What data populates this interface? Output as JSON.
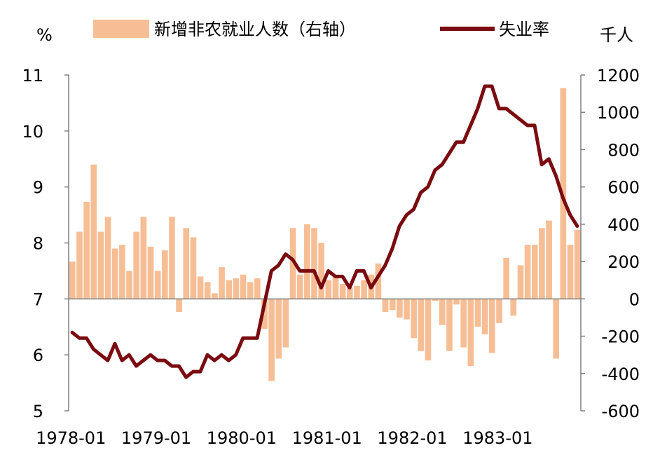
{
  "chart_data": {
    "type": "bar+line",
    "title": "",
    "left_unit": "%",
    "right_unit": "千人",
    "ylim_left": [
      5,
      11
    ],
    "ylim_right": [
      -600,
      1200
    ],
    "left_ticks": [
      5,
      6,
      7,
      8,
      9,
      10,
      11
    ],
    "right_ticks": [
      -600,
      -400,
      -200,
      0,
      200,
      400,
      600,
      800,
      1000,
      1200
    ],
    "x_tick_labels": [
      "1978-01",
      "1979-01",
      "1980-01",
      "1981-01",
      "1982-01",
      "1983-01"
    ],
    "x_tick_index": [
      0,
      12,
      24,
      36,
      48,
      60
    ],
    "months": 72,
    "colors": {
      "bar": "#F6BE95",
      "line": "#7A0B10",
      "axis": "#7F7F7F"
    },
    "legend": [
      {
        "name": "新增非农就业人数（右轴）",
        "kind": "bar"
      },
      {
        "name": "失业率",
        "kind": "line"
      }
    ],
    "series": [
      {
        "name": "新增非农就业人数（右轴）",
        "axis": "right",
        "values": [
          200,
          360,
          520,
          720,
          360,
          440,
          270,
          290,
          150,
          360,
          440,
          280,
          150,
          260,
          440,
          -70,
          380,
          330,
          120,
          90,
          30,
          170,
          100,
          110,
          130,
          90,
          110,
          -160,
          -440,
          -320,
          -260,
          380,
          130,
          400,
          380,
          300,
          100,
          120,
          80,
          60,
          70,
          100,
          130,
          190,
          -70,
          -60,
          -100,
          -110,
          -210,
          -280,
          -330,
          -10,
          -140,
          -280,
          -30,
          -260,
          -360,
          -150,
          -190,
          -290,
          -130,
          220,
          -90,
          180,
          290,
          290,
          380,
          420,
          -320,
          1130,
          290,
          370
        ]
      },
      {
        "name": "失业率",
        "axis": "left",
        "values": [
          6.4,
          6.3,
          6.3,
          6.1,
          6.0,
          5.9,
          6.2,
          5.9,
          6.0,
          5.8,
          5.9,
          6.0,
          5.9,
          5.9,
          5.8,
          5.8,
          5.6,
          5.7,
          5.7,
          6.0,
          5.9,
          6.0,
          5.9,
          6.0,
          6.3,
          6.3,
          6.3,
          6.9,
          7.5,
          7.6,
          7.8,
          7.7,
          7.5,
          7.5,
          7.5,
          7.2,
          7.5,
          7.4,
          7.4,
          7.2,
          7.5,
          7.5,
          7.2,
          7.4,
          7.6,
          7.9,
          8.3,
          8.5,
          8.6,
          8.9,
          9.0,
          9.3,
          9.4,
          9.6,
          9.8,
          9.8,
          10.1,
          10.4,
          10.8,
          10.8,
          10.4,
          10.4,
          10.3,
          10.2,
          10.1,
          10.1,
          9.4,
          9.5,
          9.2,
          8.8,
          8.5,
          8.3
        ]
      }
    ]
  }
}
